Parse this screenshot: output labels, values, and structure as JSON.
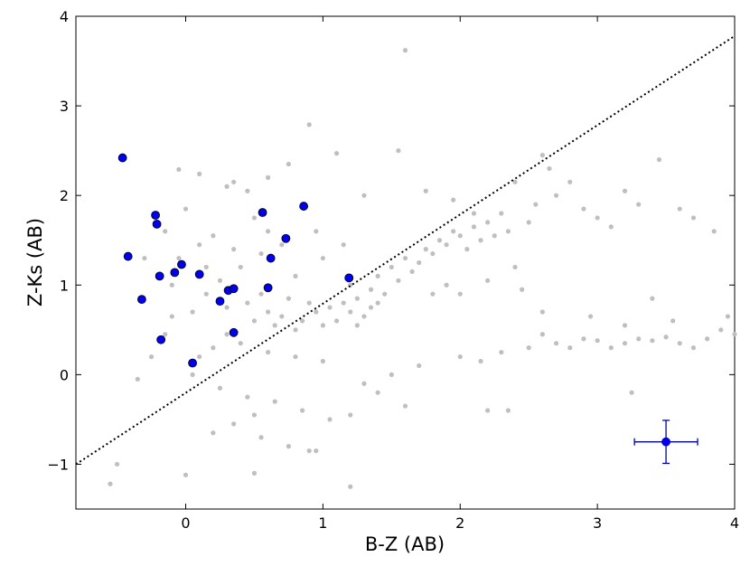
{
  "chart_data": {
    "type": "scatter",
    "xlabel": "B-Z (AB)",
    "ylabel": "Z-Ks (AB)",
    "xlim": [
      -0.8,
      4.0
    ],
    "ylim": [
      -1.5,
      4.0
    ],
    "x_ticks": [
      0,
      1,
      2,
      3,
      4
    ],
    "x_tick_labels": [
      "0",
      "1",
      "2",
      "3",
      "4"
    ],
    "y_ticks": [
      -1,
      0,
      1,
      2,
      3,
      4
    ],
    "y_tick_labels": [
      "−1",
      "0",
      "1",
      "2",
      "3",
      "4"
    ],
    "grid": false,
    "legend": "none",
    "colors": {
      "background_points": "#bfbfbf",
      "highlight_points": "#0000ee",
      "highlight_edge": "#000000",
      "error_bar": "#0000aa",
      "selection_line": "#000000"
    },
    "series": [
      {
        "marker": "small-circle",
        "points": [
          [
            1.6,
            3.62
          ],
          [
            0.9,
            2.79
          ],
          [
            0.75,
            2.35
          ],
          [
            1.1,
            2.47
          ],
          [
            -0.05,
            2.29
          ],
          [
            0.1,
            2.24
          ],
          [
            1.55,
            2.5
          ],
          [
            0.45,
            2.05
          ],
          [
            0.3,
            2.1
          ],
          [
            0.6,
            2.2
          ],
          [
            1.3,
            2.0
          ],
          [
            0.0,
            1.85
          ],
          [
            0.95,
            1.6
          ],
          [
            0.2,
            1.55
          ],
          [
            -0.15,
            1.6
          ],
          [
            -0.3,
            1.3
          ],
          [
            0.35,
            1.4
          ],
          [
            0.5,
            1.75
          ],
          [
            0.7,
            1.45
          ],
          [
            -0.1,
            1.0
          ],
          [
            0.15,
            1.2
          ],
          [
            0.25,
            1.05
          ],
          [
            0.4,
            1.2
          ],
          [
            0.55,
            1.35
          ],
          [
            0.8,
            1.1
          ],
          [
            1.0,
            1.3
          ],
          [
            1.15,
            1.45
          ],
          [
            1.2,
            1.0
          ],
          [
            1.25,
            0.85
          ],
          [
            1.35,
            0.95
          ],
          [
            1.4,
            1.1
          ],
          [
            1.45,
            0.9
          ],
          [
            1.5,
            1.2
          ],
          [
            1.55,
            1.05
          ],
          [
            1.6,
            1.3
          ],
          [
            1.65,
            1.15
          ],
          [
            1.7,
            1.25
          ],
          [
            1.75,
            1.4
          ],
          [
            1.8,
            1.35
          ],
          [
            1.85,
            1.5
          ],
          [
            1.9,
            1.45
          ],
          [
            1.95,
            1.6
          ],
          [
            2.0,
            1.55
          ],
          [
            2.05,
            1.4
          ],
          [
            2.1,
            1.65
          ],
          [
            2.15,
            1.5
          ],
          [
            2.2,
            1.7
          ],
          [
            2.25,
            1.55
          ],
          [
            2.3,
            1.8
          ],
          [
            2.35,
            1.6
          ],
          [
            2.5,
            1.7
          ],
          [
            2.55,
            1.9
          ],
          [
            2.6,
            2.45
          ],
          [
            2.7,
            2.0
          ],
          [
            2.8,
            2.15
          ],
          [
            2.9,
            1.85
          ],
          [
            3.0,
            1.75
          ],
          [
            3.1,
            1.65
          ],
          [
            3.2,
            2.05
          ],
          [
            3.3,
            1.9
          ],
          [
            3.45,
            2.4
          ],
          [
            3.6,
            1.85
          ],
          [
            3.7,
            1.75
          ],
          [
            3.85,
            1.6
          ],
          [
            3.95,
            0.65
          ],
          [
            0.9,
            0.8
          ],
          [
            0.85,
            0.6
          ],
          [
            0.95,
            0.7
          ],
          [
            1.05,
            0.75
          ],
          [
            1.1,
            0.6
          ],
          [
            1.0,
            0.55
          ],
          [
            1.15,
            0.8
          ],
          [
            1.2,
            0.7
          ],
          [
            1.3,
            0.65
          ],
          [
            0.8,
            0.5
          ],
          [
            0.7,
            0.65
          ],
          [
            0.75,
            0.85
          ],
          [
            0.6,
            0.7
          ],
          [
            0.65,
            0.55
          ],
          [
            0.5,
            0.6
          ],
          [
            0.45,
            0.8
          ],
          [
            0.55,
            0.9
          ],
          [
            1.25,
            0.55
          ],
          [
            1.35,
            0.75
          ],
          [
            1.4,
            0.8
          ],
          [
            0.3,
            0.45
          ],
          [
            0.2,
            0.3
          ],
          [
            0.1,
            0.2
          ],
          [
            0.4,
            0.35
          ],
          [
            0.6,
            0.25
          ],
          [
            0.8,
            0.2
          ],
          [
            1.0,
            0.15
          ],
          [
            0.05,
            0.0
          ],
          [
            0.25,
            -0.15
          ],
          [
            0.45,
            -0.25
          ],
          [
            0.65,
            -0.3
          ],
          [
            0.85,
            -0.4
          ],
          [
            1.05,
            -0.5
          ],
          [
            1.2,
            -0.45
          ],
          [
            0.35,
            -0.55
          ],
          [
            0.2,
            -0.65
          ],
          [
            0.55,
            -0.7
          ],
          [
            0.75,
            -0.8
          ],
          [
            0.9,
            -0.85
          ],
          [
            0.5,
            -0.45
          ],
          [
            1.6,
            -0.35
          ],
          [
            1.4,
            -0.2
          ],
          [
            1.3,
            -0.1
          ],
          [
            1.5,
            0.0
          ],
          [
            1.7,
            0.1
          ],
          [
            2.0,
            0.2
          ],
          [
            2.15,
            0.15
          ],
          [
            2.3,
            0.25
          ],
          [
            2.5,
            0.3
          ],
          [
            2.6,
            0.45
          ],
          [
            2.7,
            0.35
          ],
          [
            2.8,
            0.3
          ],
          [
            2.9,
            0.4
          ],
          [
            3.0,
            0.38
          ],
          [
            3.1,
            0.3
          ],
          [
            3.2,
            0.35
          ],
          [
            3.3,
            0.4
          ],
          [
            3.4,
            0.38
          ],
          [
            3.5,
            0.42
          ],
          [
            3.6,
            0.35
          ],
          [
            3.7,
            0.3
          ],
          [
            3.8,
            0.4
          ],
          [
            3.9,
            0.5
          ],
          [
            4.0,
            0.45
          ],
          [
            2.95,
            0.65
          ],
          [
            3.2,
            0.55
          ],
          [
            3.4,
            0.85
          ],
          [
            3.55,
            0.6
          ],
          [
            2.6,
            0.7
          ],
          [
            2.45,
            0.95
          ],
          [
            2.2,
            1.05
          ],
          [
            2.4,
            1.2
          ],
          [
            2.0,
            0.9
          ],
          [
            1.9,
            1.0
          ],
          [
            1.8,
            0.9
          ],
          [
            3.25,
            -0.2
          ],
          [
            2.2,
            -0.4
          ],
          [
            2.35,
            -0.4
          ],
          [
            0.0,
            -1.12
          ],
          [
            -0.55,
            -1.22
          ],
          [
            -0.5,
            -1.0
          ],
          [
            1.2,
            -1.25
          ],
          [
            0.5,
            -1.1
          ],
          [
            0.95,
            -0.85
          ],
          [
            -0.35,
            -0.05
          ],
          [
            -0.25,
            0.2
          ],
          [
            -0.15,
            0.45
          ],
          [
            -0.1,
            0.65
          ],
          [
            0.05,
            0.7
          ],
          [
            0.15,
            0.9
          ],
          [
            0.3,
            0.75
          ],
          [
            -0.05,
            1.3
          ],
          [
            0.1,
            1.45
          ],
          [
            1.75,
            2.05
          ],
          [
            1.95,
            1.95
          ],
          [
            2.1,
            1.8
          ],
          [
            2.4,
            2.15
          ],
          [
            2.65,
            2.3
          ],
          [
            0.35,
            2.15
          ],
          [
            0.6,
            1.6
          ]
        ]
      },
      {
        "marker": "large-circle",
        "points": [
          [
            -0.46,
            2.42
          ],
          [
            -0.22,
            1.78
          ],
          [
            -0.21,
            1.68
          ],
          [
            -0.42,
            1.32
          ],
          [
            -0.19,
            1.1
          ],
          [
            -0.08,
            1.14
          ],
          [
            -0.03,
            1.23
          ],
          [
            0.1,
            1.12
          ],
          [
            -0.32,
            0.84
          ],
          [
            -0.18,
            0.39
          ],
          [
            0.05,
            0.13
          ],
          [
            0.25,
            0.82
          ],
          [
            0.31,
            0.94
          ],
          [
            0.35,
            0.96
          ],
          [
            0.35,
            0.47
          ],
          [
            0.56,
            1.81
          ],
          [
            0.6,
            0.97
          ],
          [
            0.62,
            1.3
          ],
          [
            0.73,
            1.52
          ],
          [
            0.86,
            1.88
          ],
          [
            1.19,
            1.08
          ]
        ]
      }
    ],
    "error_bar": {
      "x": 3.5,
      "y": -0.75,
      "xerr": 0.23,
      "yerr": 0.24
    },
    "reference_line": {
      "style": "dotted",
      "x": [
        -0.8,
        4.0
      ],
      "y": [
        -1.0,
        3.78
      ]
    }
  }
}
